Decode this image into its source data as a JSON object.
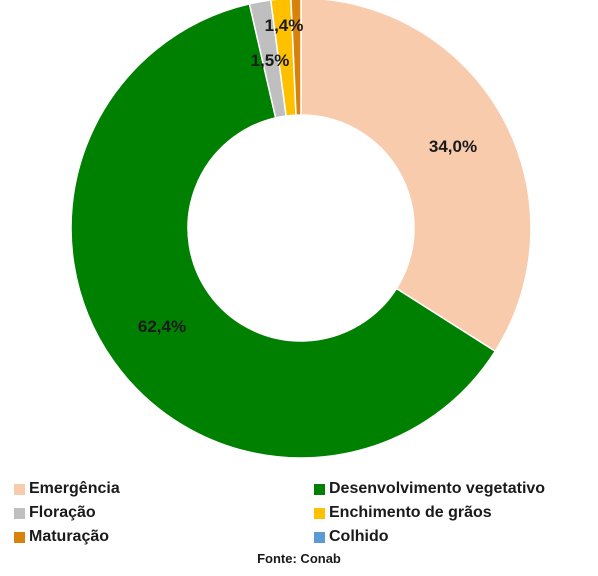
{
  "chart_data": {
    "type": "pie",
    "variant": "donut",
    "title": "",
    "categories": [
      "Emergência",
      "Desenvolvimento vegetativo",
      "Floração",
      "Enchimento de grãos",
      "Maturação",
      "Colhido"
    ],
    "values": [
      34.0,
      62.4,
      1.5,
      1.4,
      0.7,
      0.0
    ],
    "data_labels": [
      "34,0%",
      "62,4%",
      "1,5%",
      "1,4%",
      "",
      ""
    ],
    "colors": [
      "#F8CBAD",
      "#008000",
      "#BFBFBF",
      "#FFC000",
      "#D9820B",
      "#5B9BD5"
    ],
    "legend_position": "bottom",
    "source": "Fonte: Conab"
  }
}
